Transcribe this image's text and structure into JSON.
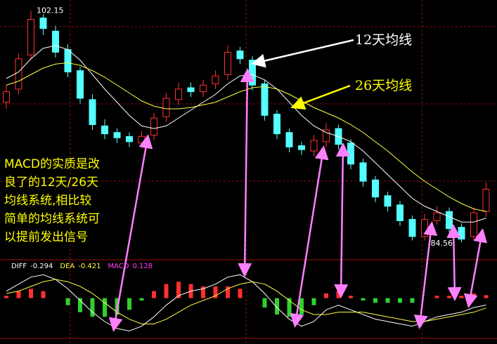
{
  "chart_data": {
    "type": "candlestick",
    "open": [
      95.2,
      96.2,
      98.8,
      101.6,
      100.6,
      99.2,
      97.6,
      95.4,
      93.4,
      92.9,
      92.6,
      92.1,
      92.7,
      94.1,
      95.4,
      96.3,
      96.0,
      96.6,
      97.3,
      99.1,
      98.4,
      96.6,
      94.3,
      92.9,
      91.9,
      91.5,
      92.2,
      93.2,
      92.1,
      90.6,
      89.3,
      88.1,
      87.4,
      86.3,
      85.0,
      86.2,
      86.9,
      85.7,
      85.0,
      86.9
    ],
    "close": [
      96,
      98.5,
      101.5,
      100.8,
      99,
      97.5,
      95.5,
      93.5,
      92.8,
      92.5,
      92.2,
      92.6,
      94,
      95.5,
      96.2,
      96,
      96.5,
      97.2,
      99,
      98.5,
      96.5,
      94.2,
      92.8,
      91.8,
      91.6,
      92.3,
      93.1,
      92,
      90.5,
      89.2,
      88,
      87.3,
      86.2,
      85,
      86.3,
      86.8,
      85.6,
      84.8,
      86.8,
      88.6
    ],
    "high": [
      96.5,
      98.9,
      102.15,
      101.9,
      101.0,
      99.6,
      97.9,
      95.8,
      93.9,
      93.2,
      92.9,
      93.0,
      94.4,
      95.9,
      96.7,
      96.7,
      96.9,
      97.6,
      99.5,
      99.4,
      98.7,
      96.9,
      94.6,
      93.2,
      92.2,
      92.7,
      93.6,
      93.5,
      92.4,
      90.9,
      89.6,
      88.4,
      87.7,
      86.6,
      86.7,
      87.3,
      87.2,
      86.0,
      87.2,
      89.1
    ],
    "low": [
      94.7,
      95.8,
      98.4,
      100.3,
      98.6,
      97.1,
      95.1,
      93.1,
      92.4,
      92.1,
      91.8,
      91.7,
      92.3,
      93.7,
      95.0,
      95.6,
      95.6,
      96.2,
      96.9,
      98.1,
      96.1,
      93.8,
      92.4,
      91.4,
      91.2,
      91.1,
      91.8,
      91.6,
      90.1,
      88.8,
      87.6,
      86.9,
      85.8,
      84.7,
      84.7,
      85.9,
      85.3,
      84.56,
      84.7,
      86.5
    ],
    "ylim": [
      83.5,
      102.7
    ],
    "up_color": "#ff3030",
    "down_color": "#54ffff",
    "moving_averages": [
      {
        "color": "#ffffff",
        "values": [
          97,
          97.5,
          98.5,
          99.3,
          99.5,
          99.2,
          98.4,
          97.3,
          96.2,
          95.2,
          94.2,
          93.4,
          93.2,
          93.4,
          94,
          94.6,
          95.2,
          95.8,
          96.6,
          97.2,
          97.3,
          96.9,
          96.2,
          95.2,
          94.2,
          93.4,
          92.9,
          92.6,
          92.2,
          91.5,
          90.6,
          89.7,
          88.8,
          87.9,
          87.3,
          86.9,
          86.5,
          86.1,
          86.1,
          86.4
        ]
      },
      {
        "color": "#ffff40",
        "values": [
          96.5,
          96.8,
          97.3,
          97.8,
          98.1,
          98.2,
          98,
          97.6,
          97.1,
          96.5,
          95.9,
          95.3,
          94.9,
          94.7,
          94.7,
          94.8,
          95,
          95.2,
          95.6,
          96,
          96.3,
          96.4,
          96.2,
          95.8,
          95.3,
          94.8,
          94.4,
          94,
          93.5,
          92.9,
          92.2,
          91.5,
          90.7,
          89.9,
          89.2,
          88.6,
          88,
          87.5,
          87.1,
          86.9
        ]
      }
    ],
    "annotations": [
      "12天均线",
      "26天均线"
    ],
    "note_lines": [
      "MACD的实质是改",
      "良了的12天/26天",
      "均线系统,相比较",
      "简单的均线系统可",
      "以提前发出信号"
    ],
    "macd_panel": {
      "ylim": [
        -1.6,
        1.4
      ],
      "series": [
        {
          "name": "DIFF",
          "color": "#ffffff",
          "values": [
            0.3,
            0.6,
            0.9,
            1.0,
            0.8,
            0.4,
            -0.1,
            -0.6,
            -1.0,
            -1.3,
            -1.4,
            -1.2,
            -0.8,
            -0.3,
            0.1,
            0.3,
            0.4,
            0.6,
            0.9,
            1.0,
            0.7,
            0.2,
            -0.4,
            -0.9,
            -1.2,
            -1.0,
            -0.5,
            -0.3,
            -0.5,
            -0.7,
            -0.9,
            -1.0,
            -1.1,
            -1.2,
            -1.0,
            -0.8,
            -0.7,
            -0.6,
            -0.4,
            -0.294
          ]
        },
        {
          "name": "DEA",
          "color": "#ffff40",
          "values": [
            0.2,
            0.3,
            0.5,
            0.7,
            0.8,
            0.7,
            0.5,
            0.2,
            -0.2,
            -0.6,
            -0.9,
            -1.1,
            -1.1,
            -0.9,
            -0.6,
            -0.3,
            -0.1,
            0.1,
            0.4,
            0.6,
            0.7,
            0.6,
            0.3,
            -0.1,
            -0.5,
            -0.7,
            -0.7,
            -0.6,
            -0.6,
            -0.6,
            -0.7,
            -0.8,
            -0.9,
            -1.0,
            -1.0,
            -0.9,
            -0.8,
            -0.7,
            -0.6,
            -0.421
          ]
        },
        {
          "name": "MACD",
          "color": "#ff40ff",
          "values": [
            0.1,
            0.3,
            0.4,
            0.3,
            0,
            -0.3,
            -0.6,
            -0.8,
            -0.8,
            -0.7,
            -0.5,
            -0.1,
            0.3,
            0.6,
            0.7,
            0.6,
            0.5,
            0.5,
            0.5,
            0.4,
            0,
            -0.4,
            -0.7,
            -0.8,
            -0.7,
            -0.3,
            0.2,
            0.3,
            0.1,
            -0.1,
            -0.2,
            -0.2,
            -0.2,
            -0.2,
            0,
            0.1,
            0.1,
            0.1,
            0.2,
            0.128
          ]
        }
      ]
    }
  }
}
